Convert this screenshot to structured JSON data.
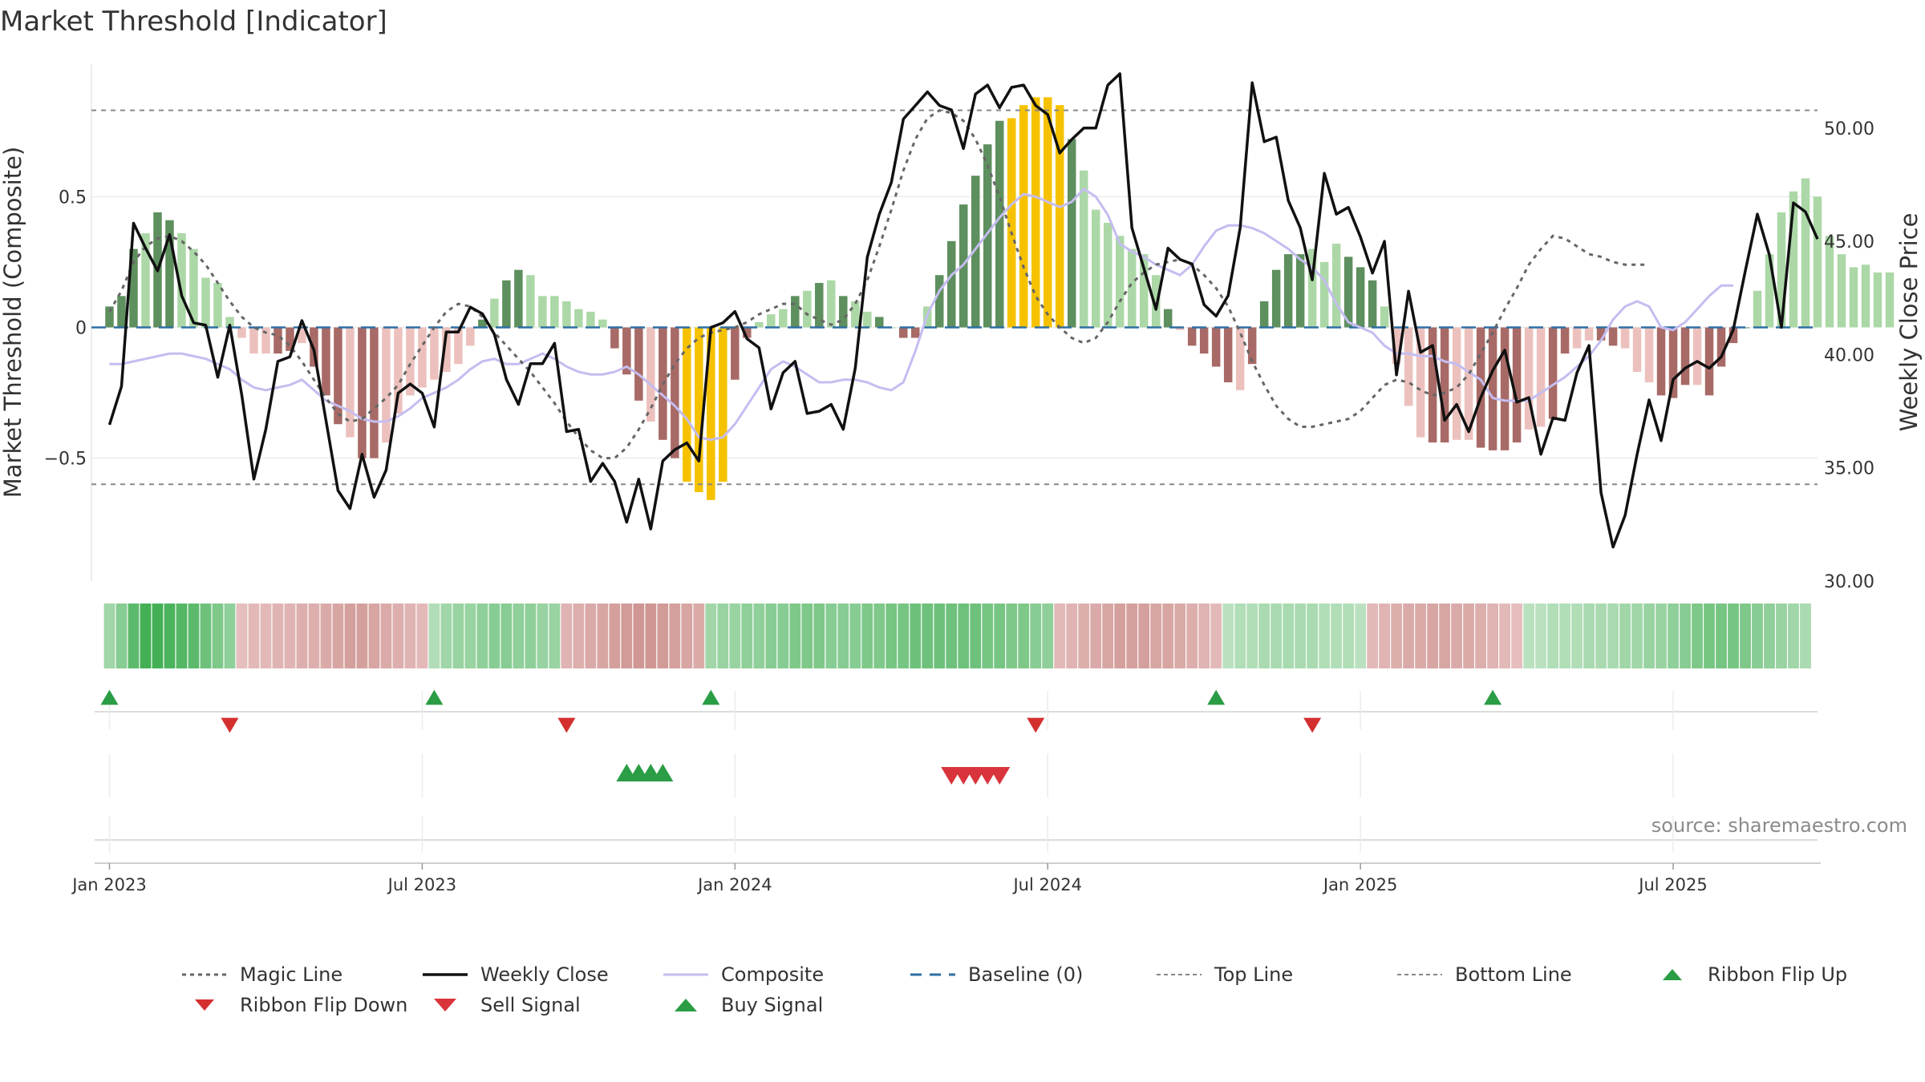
{
  "title": "Market Threshold [Indicator]",
  "source": "source: sharemaestro.com",
  "colors": {
    "weekly_close": "#111111",
    "composite": "#c5bdf0",
    "magic_line": "#666666",
    "baseline": "#2f6fa3",
    "threshold_lines": "#888888",
    "bar_strong_pos": "#5e8f5e",
    "bar_weak_pos": "#acd8a7",
    "bar_strong_neg": "#a86a66",
    "bar_weak_neg": "#ecc1bd",
    "bar_extreme": "#f6c200",
    "signal_up": "#2a9d45",
    "signal_down": "#d42f2f"
  },
  "chart_data": {
    "type": "bar+line",
    "title": "Market Threshold [Indicator]",
    "ylabel_left": "Market Threshold (Composite)",
    "ylabel_right": "Weekly Close Price",
    "left_ticks": [
      {
        "value": 0.5,
        "label": "0.5"
      },
      {
        "value": 0,
        "label": "0"
      },
      {
        "value": -0.5,
        "label": "−0.5"
      }
    ],
    "right_ticks": [
      {
        "value": 50,
        "label": "50.00"
      },
      {
        "value": 45,
        "label": "45.00"
      },
      {
        "value": 40,
        "label": "40.00"
      },
      {
        "value": 35,
        "label": "35.00"
      },
      {
        "value": 30,
        "label": "30.00"
      }
    ],
    "ylim_left": [
      -0.97,
      0.97
    ],
    "ylim_right": [
      30,
      52.4
    ],
    "top_line": 0.83,
    "bottom_line": -0.6,
    "baseline": 0,
    "x_ticks": [
      {
        "week": 0,
        "label": "Jan 2023"
      },
      {
        "week": 26,
        "label": "Jul 2023"
      },
      {
        "week": 52,
        "label": "Jan 2024"
      },
      {
        "week": 78,
        "label": "Jul 2024"
      },
      {
        "week": 104,
        "label": "Jan 2025"
      },
      {
        "week": 130,
        "label": "Jul 2025"
      }
    ],
    "x_range_weeks": [
      -1.5,
      142
    ],
    "composite_bars": [
      0.08,
      0.12,
      0.3,
      0.36,
      0.44,
      0.41,
      0.36,
      0.3,
      0.19,
      0.17,
      0.04,
      -0.04,
      -0.1,
      -0.1,
      -0.1,
      -0.09,
      -0.06,
      -0.15,
      -0.26,
      -0.37,
      -0.42,
      -0.5,
      -0.5,
      -0.44,
      -0.33,
      -0.26,
      -0.23,
      -0.2,
      -0.17,
      -0.14,
      -0.07,
      0.03,
      0.11,
      0.18,
      0.22,
      0.2,
      0.12,
      0.12,
      0.1,
      0.07,
      0.06,
      0.03,
      -0.08,
      -0.18,
      -0.28,
      -0.36,
      -0.43,
      -0.5,
      -0.59,
      -0.63,
      -0.66,
      -0.59,
      -0.2,
      -0.04,
      0.02,
      0.05,
      0.07,
      0.12,
      0.14,
      0.17,
      0.18,
      0.12,
      0.1,
      0.06,
      0.04,
      0.0,
      -0.04,
      -0.04,
      0.08,
      0.2,
      0.33,
      0.47,
      0.58,
      0.7,
      0.79,
      0.8,
      0.85,
      0.88,
      0.88,
      0.85,
      0.72,
      0.6,
      0.45,
      0.4,
      0.35,
      0.3,
      0.28,
      0.2,
      0.07,
      -0.01,
      -0.07,
      -0.1,
      -0.15,
      -0.21,
      -0.24,
      -0.14,
      0.1,
      0.22,
      0.28,
      0.28,
      0.3,
      0.25,
      0.32,
      0.27,
      0.23,
      0.18,
      0.08,
      -0.14,
      -0.3,
      -0.42,
      -0.44,
      -0.44,
      -0.43,
      -0.43,
      -0.46,
      -0.47,
      -0.47,
      -0.44,
      -0.39,
      -0.38,
      -0.35,
      -0.1,
      -0.08,
      -0.05,
      -0.05,
      -0.07,
      -0.08,
      -0.17,
      -0.21,
      -0.26,
      -0.27,
      -0.22,
      -0.22,
      -0.26,
      -0.15,
      -0.06,
      0.0,
      0.14,
      0.28,
      0.44,
      0.52,
      0.57,
      0.5,
      0.35,
      0.28,
      0.23,
      0.24,
      0.21,
      0.21
    ],
    "bar_styles": "ssswsswwwwwwwwsswssswsswwwwwwwwswsswwwwwwwssswsseeeesswwwswswswwswsswsssssseeeeeswwwwwwwswsssswssssswwwssswwwwsswwsssswwsswwsswwwssswsssswwwwwww",
    "weekly_close": [
      36.9,
      38.6,
      45.8,
      44.7,
      43.7,
      45.3,
      42.6,
      41.4,
      41.3,
      39.0,
      41.3,
      38.2,
      34.5,
      36.7,
      39.7,
      39.9,
      41.5,
      40.2,
      37.1,
      34.0,
      33.2,
      35.6,
      33.7,
      34.9,
      38.3,
      38.7,
      38.3,
      36.8,
      41.0,
      41.0,
      42.1,
      41.8,
      40.9,
      38.9,
      37.8,
      39.6,
      39.6,
      40.5,
      36.6,
      36.7,
      34.4,
      35.2,
      34.4,
      32.6,
      34.5,
      32.3,
      35.3,
      35.8,
      36.1,
      35.3,
      41.2,
      41.4,
      41.9,
      40.7,
      40.3,
      37.6,
      39.2,
      39.7,
      37.4,
      37.5,
      37.8,
      36.7,
      39.4,
      44.3,
      46.2,
      47.6,
      50.4,
      51.0,
      51.6,
      51.0,
      50.8,
      49.1,
      51.5,
      51.9,
      50.9,
      51.8,
      51.9,
      51.0,
      50.6,
      48.9,
      49.5,
      50.0,
      50.0,
      51.9,
      52.4,
      45.6,
      43.8,
      42.0,
      44.7,
      44.2,
      44.0,
      42.2,
      41.7,
      42.6,
      45.6,
      52.0,
      49.4,
      49.6,
      46.8,
      45.6,
      43.3,
      48.0,
      46.2,
      46.5,
      45.2,
      43.6,
      45.0,
      39.1,
      42.8,
      40.1,
      40.4,
      37.1,
      37.8,
      36.6,
      38.1,
      39.3,
      40.2,
      37.9,
      38.1,
      35.6,
      37.2,
      37.1,
      39.2,
      40.4,
      33.9,
      31.5,
      32.9,
      35.6,
      38.0,
      36.2,
      38.9,
      39.4,
      39.7,
      39.4,
      39.9,
      41.1,
      43.7,
      46.2,
      44.4,
      41.2,
      46.7,
      46.3,
      45.1
    ],
    "composite_line": [
      -0.14,
      -0.14,
      -0.13,
      -0.12,
      -0.11,
      -0.1,
      -0.1,
      -0.11,
      -0.12,
      -0.14,
      -0.16,
      -0.2,
      -0.23,
      -0.24,
      -0.23,
      -0.22,
      -0.2,
      -0.24,
      -0.28,
      -0.3,
      -0.32,
      -0.35,
      -0.36,
      -0.36,
      -0.34,
      -0.31,
      -0.27,
      -0.25,
      -0.23,
      -0.2,
      -0.16,
      -0.13,
      -0.12,
      -0.14,
      -0.14,
      -0.12,
      -0.1,
      -0.12,
      -0.15,
      -0.17,
      -0.18,
      -0.18,
      -0.17,
      -0.15,
      -0.18,
      -0.22,
      -0.26,
      -0.3,
      -0.35,
      -0.42,
      -0.43,
      -0.42,
      -0.37,
      -0.3,
      -0.23,
      -0.16,
      -0.13,
      -0.15,
      -0.18,
      -0.21,
      -0.21,
      -0.2,
      -0.2,
      -0.21,
      -0.23,
      -0.24,
      -0.21,
      -0.09,
      0.05,
      0.14,
      0.2,
      0.24,
      0.3,
      0.36,
      0.42,
      0.47,
      0.51,
      0.5,
      0.48,
      0.46,
      0.48,
      0.53,
      0.5,
      0.43,
      0.32,
      0.29,
      0.27,
      0.24,
      0.22,
      0.2,
      0.24,
      0.31,
      0.37,
      0.39,
      0.39,
      0.38,
      0.36,
      0.33,
      0.3,
      0.26,
      0.23,
      0.18,
      0.09,
      0.02,
      0.0,
      -0.02,
      -0.07,
      -0.1,
      -0.1,
      -0.11,
      -0.11,
      -0.13,
      -0.14,
      -0.17,
      -0.2,
      -0.27,
      -0.28,
      -0.28,
      -0.28,
      -0.25,
      -0.22,
      -0.19,
      -0.15,
      -0.11,
      -0.05,
      0.03,
      0.08,
      0.1,
      0.08,
      0.0,
      -0.01,
      0.02,
      0.07,
      0.12,
      0.16,
      0.16
    ],
    "magic_line": [
      0.06,
      0.14,
      0.25,
      0.31,
      0.34,
      0.35,
      0.33,
      0.29,
      0.24,
      0.17,
      0.1,
      0.04,
      0.0,
      -0.02,
      -0.03,
      -0.07,
      -0.13,
      -0.2,
      -0.27,
      -0.33,
      -0.36,
      -0.35,
      -0.31,
      -0.27,
      -0.22,
      -0.14,
      -0.07,
      0.0,
      0.06,
      0.09,
      0.08,
      0.04,
      -0.02,
      -0.07,
      -0.12,
      -0.17,
      -0.23,
      -0.29,
      -0.36,
      -0.42,
      -0.47,
      -0.5,
      -0.5,
      -0.46,
      -0.39,
      -0.31,
      -0.22,
      -0.14,
      -0.08,
      -0.04,
      -0.02,
      -0.01,
      0.0,
      0.02,
      0.05,
      0.07,
      0.09,
      0.09,
      0.05,
      0.03,
      0.01,
      0.03,
      0.09,
      0.18,
      0.31,
      0.45,
      0.6,
      0.72,
      0.8,
      0.83,
      0.82,
      0.79,
      0.72,
      0.62,
      0.5,
      0.36,
      0.23,
      0.12,
      0.05,
      0.0,
      -0.04,
      -0.06,
      -0.04,
      0.02,
      0.1,
      0.17,
      0.21,
      0.24,
      0.25,
      0.26,
      0.24,
      0.2,
      0.15,
      0.08,
      -0.02,
      -0.13,
      -0.22,
      -0.3,
      -0.35,
      -0.38,
      -0.38,
      -0.37,
      -0.36,
      -0.35,
      -0.32,
      -0.27,
      -0.22,
      -0.2,
      -0.21,
      -0.24,
      -0.26,
      -0.25,
      -0.23,
      -0.18,
      -0.1,
      -0.02,
      0.07,
      0.15,
      0.24,
      0.3,
      0.35,
      0.34,
      0.31,
      0.28,
      0.27,
      0.25,
      0.24,
      0.24,
      0.24
    ],
    "ribbon": [
      0.4,
      0.55,
      0.8,
      0.95,
      0.95,
      0.9,
      0.85,
      0.8,
      0.7,
      0.6,
      0.5,
      -0.3,
      -0.35,
      -0.35,
      -0.4,
      -0.4,
      -0.45,
      -0.45,
      -0.5,
      -0.55,
      -0.6,
      -0.6,
      -0.55,
      -0.5,
      -0.45,
      -0.4,
      -0.35,
      0.3,
      0.4,
      0.45,
      0.45,
      0.5,
      0.55,
      0.55,
      0.5,
      0.5,
      0.45,
      0.45,
      -0.4,
      -0.45,
      -0.5,
      -0.55,
      -0.6,
      -0.65,
      -0.7,
      -0.7,
      -0.65,
      -0.6,
      -0.55,
      -0.5,
      0.4,
      0.45,
      0.45,
      0.5,
      0.5,
      0.55,
      0.55,
      0.6,
      0.6,
      0.6,
      0.55,
      0.55,
      0.55,
      0.6,
      0.6,
      0.65,
      0.65,
      0.7,
      0.7,
      0.7,
      0.7,
      0.7,
      0.7,
      0.65,
      0.65,
      0.6,
      0.6,
      0.55,
      0.5,
      -0.35,
      -0.4,
      -0.45,
      -0.5,
      -0.55,
      -0.6,
      -0.6,
      -0.6,
      -0.55,
      -0.55,
      -0.5,
      -0.45,
      -0.4,
      -0.35,
      0.25,
      0.3,
      0.3,
      0.35,
      0.35,
      0.35,
      0.35,
      0.35,
      0.3,
      0.3,
      0.3,
      0.25,
      -0.35,
      -0.4,
      -0.45,
      -0.5,
      -0.5,
      -0.55,
      -0.55,
      -0.5,
      -0.5,
      -0.45,
      -0.4,
      -0.35,
      -0.3,
      0.25,
      0.25,
      0.3,
      0.3,
      0.3,
      0.35,
      0.35,
      0.35,
      0.4,
      0.4,
      0.45,
      0.45,
      0.5,
      0.55,
      0.6,
      0.65,
      0.65,
      0.65,
      0.6,
      0.55,
      0.5,
      0.45,
      0.4,
      0.35
    ],
    "ribbon_flip_up_weeks": [
      0,
      27,
      50,
      92,
      115
    ],
    "ribbon_flip_down_weeks": [
      10,
      38,
      77,
      100
    ],
    "buy_signal_weeks": [
      43,
      44,
      45,
      46
    ],
    "sell_signal_weeks": [
      70,
      71,
      72,
      73,
      74
    ],
    "legend": [
      {
        "key": "magic",
        "label": "Magic Line"
      },
      {
        "key": "weekly",
        "label": "Weekly Close"
      },
      {
        "key": "composite",
        "label": "Composite"
      },
      {
        "key": "baseline",
        "label": "Baseline (0)"
      },
      {
        "key": "top",
        "label": "Top Line"
      },
      {
        "key": "bottom",
        "label": "Bottom Line"
      },
      {
        "key": "flipup",
        "label": "Ribbon Flip Up"
      },
      {
        "key": "flipdown",
        "label": "Ribbon Flip Down"
      },
      {
        "key": "sell",
        "label": "Sell Signal"
      },
      {
        "key": "buy",
        "label": "Buy Signal"
      }
    ]
  }
}
